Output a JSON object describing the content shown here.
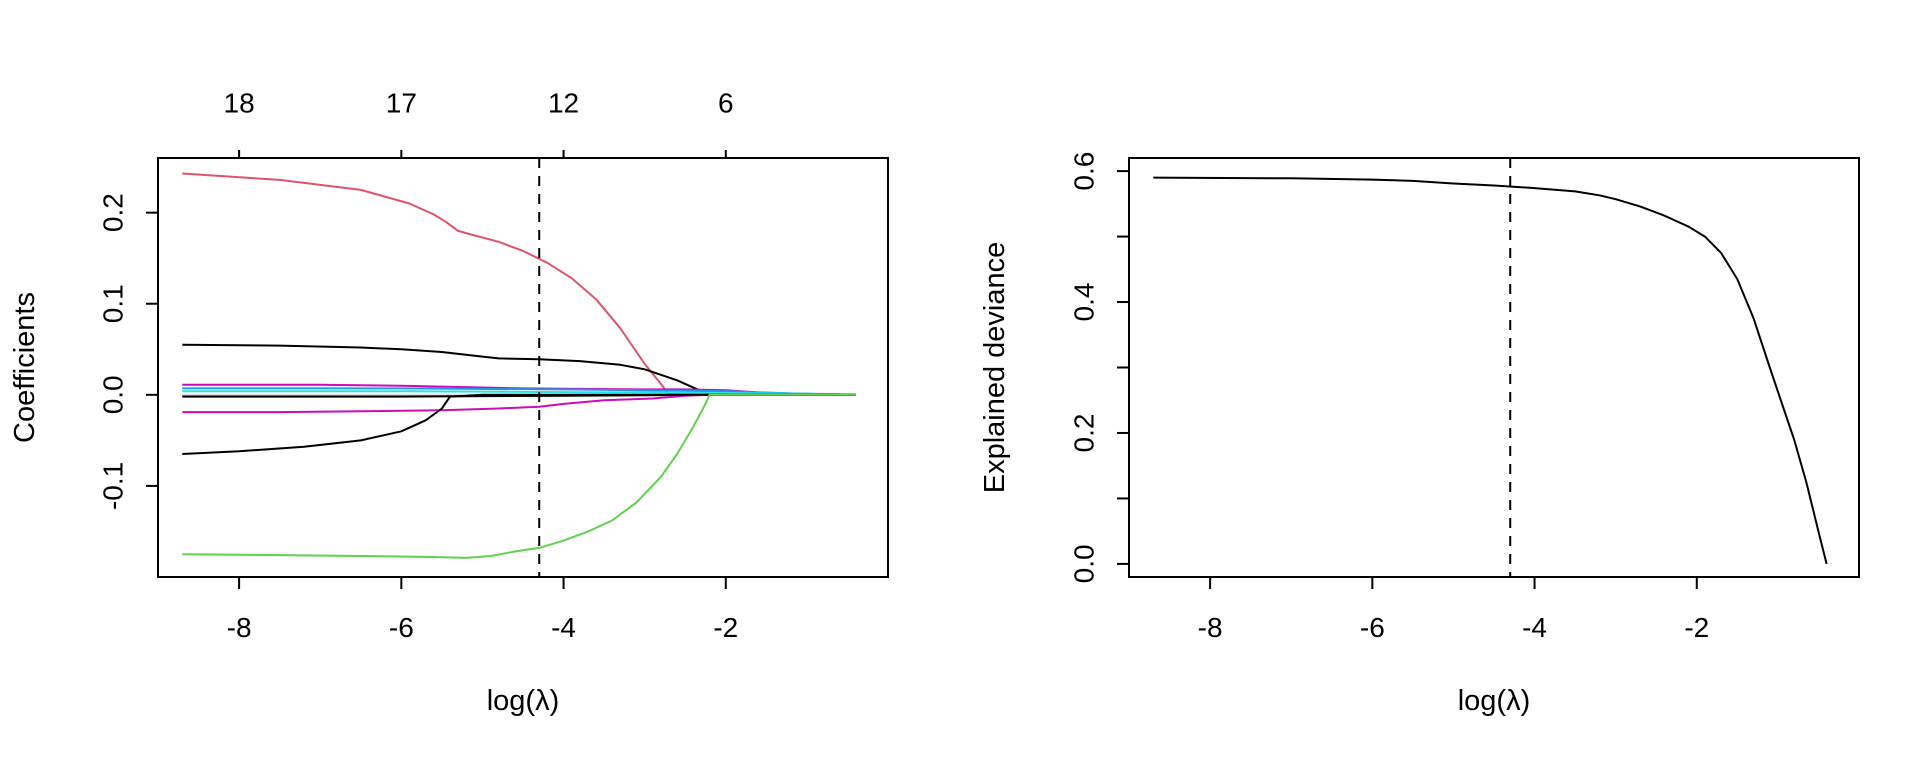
{
  "chart_data": [
    {
      "type": "line",
      "title": "",
      "xlabel": "log(λ)",
      "ylabel": "Coefficients",
      "xlim": [
        -9.0,
        0.0
      ],
      "ylim": [
        -0.2,
        0.26
      ],
      "x_ticks": [
        -8,
        -6,
        -4,
        -2
      ],
      "x_tick_labels": [
        "-8",
        "-6",
        "-4",
        "-2"
      ],
      "y_ticks": [
        -0.1,
        0.0,
        0.1,
        0.2
      ],
      "y_tick_labels": [
        "-0.1",
        "0.0",
        "0.1",
        "0.2"
      ],
      "top_axis": {
        "positions": [
          -8,
          -6,
          -4,
          -2
        ],
        "labels": [
          "18",
          "17",
          "12",
          "6"
        ]
      },
      "vline": {
        "x": -4.3,
        "style": "dashed"
      },
      "grid": false,
      "series": [
        {
          "color": "#DF536B",
          "x": [
            -8.7,
            -7.5,
            -6.5,
            -5.9,
            -5.6,
            -5.45,
            -5.3,
            -5.1,
            -4.8,
            -4.5,
            -4.2,
            -3.9,
            -3.6,
            -3.3,
            -3.0,
            -2.8,
            -2.7,
            -2.4,
            -2.0,
            -0.4
          ],
          "y": [
            0.243,
            0.236,
            0.225,
            0.21,
            0.198,
            0.19,
            0.18,
            0.175,
            0.168,
            0.158,
            0.145,
            0.128,
            0.105,
            0.073,
            0.034,
            0.012,
            0.0,
            0.0,
            0.0,
            0.0
          ]
        },
        {
          "color": "#000000",
          "x": [
            -8.7,
            -7.5,
            -6.5,
            -6.0,
            -5.5,
            -5.0,
            -4.8,
            -4.3,
            -3.8,
            -3.3,
            -3.0,
            -2.6,
            -2.3,
            -2.2,
            -2.0,
            -0.4
          ],
          "y": [
            0.055,
            0.054,
            0.052,
            0.05,
            0.047,
            0.042,
            0.04,
            0.039,
            0.037,
            0.033,
            0.028,
            0.016,
            0.004,
            0.0,
            0.0,
            0.0
          ]
        },
        {
          "color": "#CD0BBC",
          "x": [
            -8.7,
            -7.0,
            -6.0,
            -5.0,
            -4.5,
            -3.0,
            -2.5,
            -2.0,
            -1.5,
            -0.4
          ],
          "y": [
            0.011,
            0.011,
            0.01,
            0.008,
            0.007,
            0.006,
            0.006,
            0.005,
            0.002,
            0.0
          ]
        },
        {
          "color": "#2297E6",
          "x": [
            -8.7,
            -6.0,
            -4.0,
            -2.0,
            -1.0,
            -0.4
          ],
          "y": [
            0.007,
            0.007,
            0.006,
            0.004,
            0.001,
            0.0
          ]
        },
        {
          "color": "#28E2E5",
          "x": [
            -8.7,
            -6.0,
            -4.0,
            -2.0,
            -0.8,
            -0.4
          ],
          "y": [
            0.004,
            0.004,
            0.003,
            0.002,
            0.001,
            0.0
          ]
        },
        {
          "color": "#9E9E9E",
          "x": [
            -8.7,
            -6.0,
            -4.0,
            -2.0,
            -0.4
          ],
          "y": [
            -0.001,
            -0.001,
            -0.001,
            0.0,
            0.0
          ]
        },
        {
          "color": "#000000",
          "x": [
            -8.7,
            -6.0,
            -4.0,
            -2.0,
            -0.4
          ],
          "y": [
            -0.002,
            -0.002,
            -0.001,
            0.0,
            0.0
          ]
        },
        {
          "color": "#CD0BBC",
          "x": [
            -8.7,
            -7.5,
            -6.5,
            -5.5,
            -4.8,
            -4.3,
            -4.0,
            -3.5,
            -2.9,
            -2.5,
            -2.2,
            -0.4
          ],
          "y": [
            -0.019,
            -0.019,
            -0.018,
            -0.017,
            -0.015,
            -0.013,
            -0.01,
            -0.006,
            -0.004,
            -0.001,
            0.0,
            0.0
          ]
        },
        {
          "color": "#000000",
          "x": [
            -8.7,
            -8.0,
            -7.2,
            -6.5,
            -6.0,
            -5.7,
            -5.5,
            -5.4,
            -5.0,
            -4.0,
            -2.0,
            -0.4
          ],
          "y": [
            -0.065,
            -0.062,
            -0.057,
            -0.05,
            -0.04,
            -0.028,
            -0.015,
            -0.002,
            0.0,
            0.0,
            0.0,
            0.0
          ]
        },
        {
          "color": "#61D04F",
          "x": [
            -8.7,
            -7.5,
            -6.5,
            -5.6,
            -5.2,
            -4.9,
            -4.6,
            -4.3,
            -4.0,
            -3.7,
            -3.4,
            -3.1,
            -2.8,
            -2.6,
            -2.4,
            -2.25,
            -2.2,
            -2.0,
            -0.4
          ],
          "y": [
            -0.175,
            -0.176,
            -0.177,
            -0.178,
            -0.179,
            -0.177,
            -0.172,
            -0.168,
            -0.16,
            -0.15,
            -0.138,
            -0.118,
            -0.09,
            -0.065,
            -0.035,
            -0.01,
            0.0,
            0.0,
            0.0
          ]
        }
      ]
    },
    {
      "type": "line",
      "title": "",
      "xlabel": "log(λ)",
      "ylabel": "Explained deviance",
      "xlim": [
        -9.0,
        0.0
      ],
      "ylim": [
        -0.02,
        0.62
      ],
      "x_ticks": [
        -8,
        -6,
        -4,
        -2
      ],
      "x_tick_labels": [
        "-8",
        "-6",
        "-4",
        "-2"
      ],
      "y_ticks": [
        0.0,
        0.1,
        0.2,
        0.3,
        0.4,
        0.5,
        0.6
      ],
      "y_tick_labels": [
        "0.0",
        "",
        "0.2",
        "",
        "0.4",
        "",
        "0.6"
      ],
      "vline": {
        "x": -4.3,
        "style": "dashed"
      },
      "grid": false,
      "series": [
        {
          "color": "#000000",
          "x": [
            -8.7,
            -7.0,
            -6.0,
            -5.5,
            -5.0,
            -4.5,
            -4.0,
            -3.5,
            -3.2,
            -3.0,
            -2.7,
            -2.4,
            -2.1,
            -1.9,
            -1.7,
            -1.5,
            -1.3,
            -1.1,
            -0.95,
            -0.8,
            -0.65,
            -0.5,
            -0.4
          ],
          "y": [
            0.59,
            0.589,
            0.587,
            0.585,
            0.581,
            0.578,
            0.574,
            0.569,
            0.563,
            0.557,
            0.546,
            0.532,
            0.515,
            0.5,
            0.475,
            0.435,
            0.375,
            0.3,
            0.245,
            0.19,
            0.125,
            0.05,
            0.0
          ]
        }
      ]
    }
  ]
}
